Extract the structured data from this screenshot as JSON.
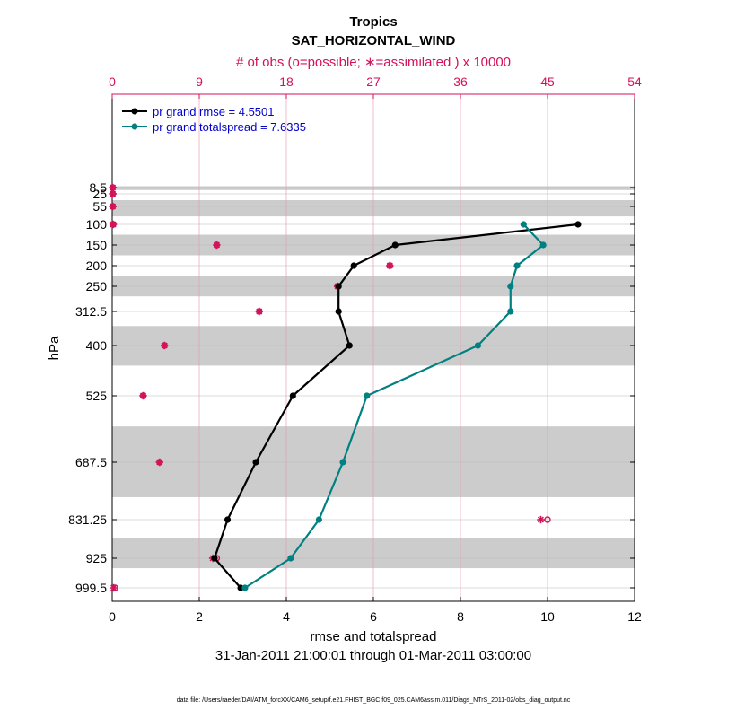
{
  "chart_data": {
    "type": "line",
    "title": "Tropics",
    "subtitle": "SAT_HORIZONTAL_WIND",
    "top_axis_label": "# of obs (o=possible; ∗=assimilated ) x 10000",
    "xlabel": "rmse and totalspread",
    "ylabel": "hPa",
    "date_range": "31-Jan-2011 21:00:01 through 01-Mar-2011 03:00:00",
    "footer": "data file: /Users/raeder/DAI/ATM_forcXX/CAM6_setup/f.e21.FHIST_BGC.f09_025.CAM6assim.011/Diags_NTrS_2011-02/obs_diag_output.nc",
    "xlim": [
      0,
      12
    ],
    "x_ticks": [
      "0",
      "2",
      "4",
      "6",
      "8",
      "10",
      "12"
    ],
    "top_xlim": [
      0,
      54
    ],
    "top_ticks": [
      "0",
      "9",
      "18",
      "27",
      "36",
      "45",
      "54"
    ],
    "y_ticks": [
      "8.5",
      "25",
      "55",
      "100",
      "150",
      "200",
      "250",
      "312.5",
      "400",
      "525",
      "687.5",
      "831.25",
      "925",
      "999.5"
    ],
    "levels": [
      8.5,
      25,
      55,
      100,
      150,
      200,
      250,
      312.5,
      400,
      525,
      687.5,
      831.25,
      925,
      999.5
    ],
    "shaded_bands": [
      [
        5,
        15
      ],
      [
        40,
        80
      ],
      [
        125,
        175
      ],
      [
        225,
        275
      ],
      [
        350,
        450
      ],
      [
        600,
        775
      ],
      [
        875,
        950
      ]
    ],
    "series": [
      {
        "name": "rmse",
        "legend": "pr grand rmse = 4.5501",
        "color": "#000000",
        "levels": [
          100,
          150,
          200,
          250,
          312.5,
          400,
          525,
          687.5,
          831.25,
          925,
          999.5
        ],
        "values": [
          10.7,
          6.5,
          5.55,
          5.2,
          5.2,
          5.45,
          4.15,
          3.3,
          2.65,
          2.35,
          2.95
        ]
      },
      {
        "name": "totalspread",
        "legend": "pr grand totalspread = 7.6335",
        "color": "#008080",
        "levels": [
          100,
          150,
          200,
          250,
          312.5,
          400,
          525,
          687.5,
          831.25,
          925,
          999.5
        ],
        "values": [
          9.45,
          9.9,
          9.3,
          9.15,
          9.15,
          8.4,
          5.85,
          5.3,
          4.75,
          4.1,
          3.05
        ]
      }
    ],
    "obs_assimilated": {
      "color": "#d3125a",
      "levels": [
        8.5,
        25,
        55,
        100,
        150,
        200,
        250,
        312.5,
        400,
        525,
        687.5,
        831.25,
        925,
        999.5
      ],
      "values": [
        0.05,
        0.05,
        0.05,
        0.1,
        10.8,
        28.7,
        23.3,
        15.2,
        5.4,
        3.2,
        4.9,
        44.3,
        10.4,
        0.15
      ]
    },
    "obs_possible": {
      "color": "#d3125a",
      "levels": [
        8.5,
        25,
        55,
        100,
        150,
        200,
        250,
        312.5,
        400,
        525,
        687.5,
        831.25,
        925,
        999.5
      ],
      "values": [
        0.05,
        0.05,
        0.05,
        0.1,
        10.8,
        28.7,
        23.3,
        15.2,
        5.4,
        3.2,
        4.9,
        45.0,
        10.8,
        0.3
      ]
    }
  }
}
